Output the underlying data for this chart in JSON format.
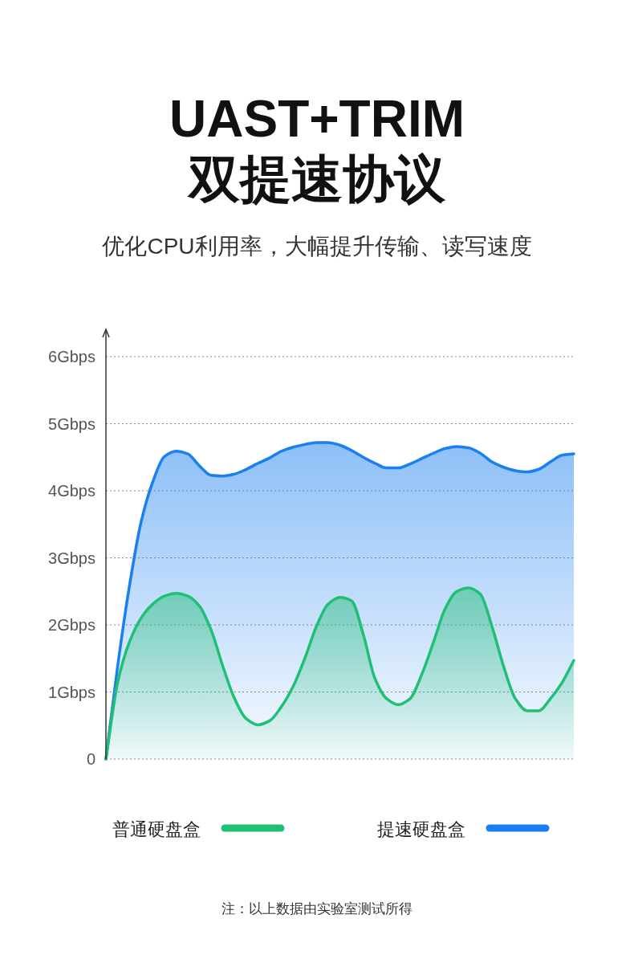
{
  "chart_data": {
    "type": "area",
    "title": "UAST+TRIM\n双提速协议",
    "subtitle": "优化CPU利用率，大幅提升传输、读写速度",
    "annotations": [
      "注：以上数据由实验室测试所得"
    ],
    "categories": [
      null,
      null,
      null,
      null,
      null,
      null,
      null,
      null,
      null,
      null,
      null,
      null,
      null,
      null,
      null,
      null,
      null,
      null,
      null,
      null,
      null,
      null,
      null,
      null,
      null,
      null,
      null,
      null,
      null,
      null,
      null,
      null,
      null,
      null,
      null,
      null,
      null,
      null,
      null,
      null,
      null
    ],
    "series": [
      {
        "name": "普通硬盘盒",
        "color": "#1fbf74",
        "values": [
          0,
          1.14,
          1.74,
          2.1,
          2.31,
          2.43,
          2.47,
          2.43,
          2.28,
          1.92,
          1.38,
          0.9,
          0.6,
          0.51,
          0.57,
          0.78,
          1.08,
          1.5,
          1.98,
          2.31,
          2.41,
          2.36,
          1.86,
          1.2,
          0.9,
          0.81,
          0.9,
          1.26,
          1.74,
          2.24,
          2.5,
          2.55,
          2.46,
          1.98,
          1.38,
          0.9,
          0.72,
          0.72,
          0.9,
          1.14,
          1.47
        ]
      },
      {
        "name": "提速硬盘盒",
        "color": "#1a7ff0",
        "values": [
          0,
          1.38,
          2.57,
          3.53,
          4.13,
          4.51,
          4.59,
          4.55,
          4.37,
          4.23,
          4.22,
          4.25,
          4.32,
          4.41,
          4.49,
          4.59,
          4.65,
          4.69,
          4.72,
          4.72,
          4.68,
          4.6,
          4.5,
          4.41,
          4.34,
          4.34,
          4.4,
          4.48,
          4.56,
          4.63,
          4.66,
          4.64,
          4.56,
          4.43,
          4.35,
          4.3,
          4.28,
          4.32,
          4.43,
          4.53,
          4.55
        ]
      }
    ],
    "ylim": [
      0,
      6
    ],
    "yticks": [
      0,
      {
        "value": 1,
        "label": "1Gbps"
      },
      {
        "value": 2,
        "label": "2Gbps"
      },
      {
        "value": 3,
        "label": "3Gbps"
      },
      {
        "value": 4,
        "label": "4Gbps"
      },
      {
        "value": 5,
        "label": "5Gbps"
      },
      {
        "value": 6,
        "label": "6Gbps"
      }
    ],
    "grid": "y",
    "legend": "bottom",
    "line_style": "solid"
  }
}
